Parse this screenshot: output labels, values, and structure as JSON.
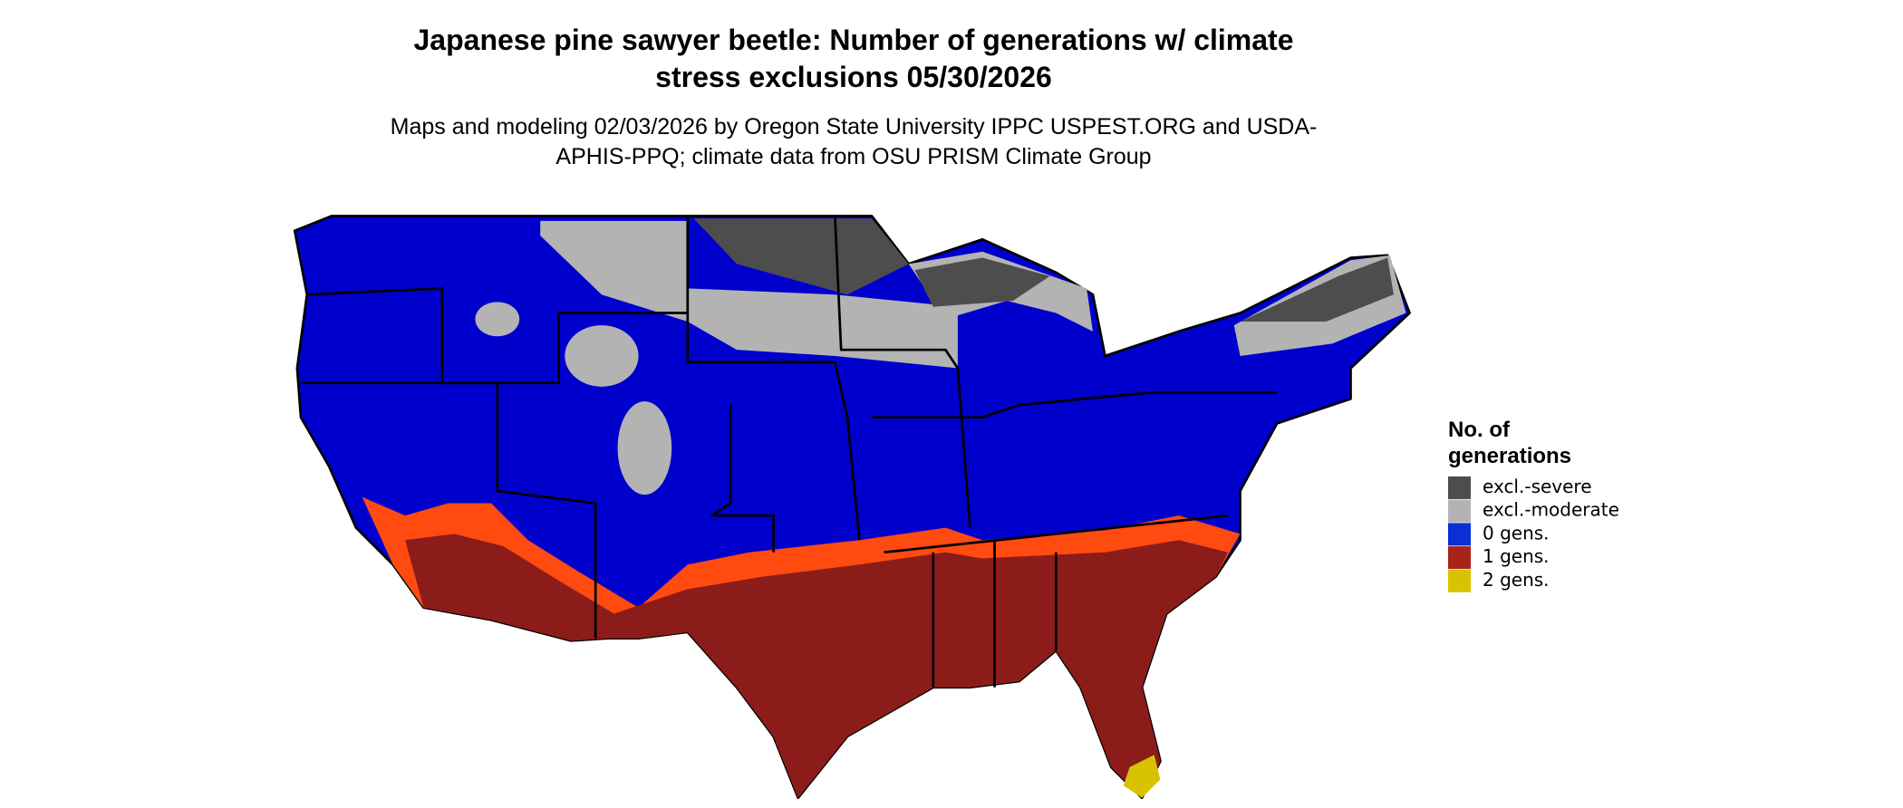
{
  "title": "Japanese pine sawyer beetle: Number of generations w/ climate stress exclusions 05/30/2026",
  "subtitle": "Maps and modeling 02/03/2026 by Oregon State University IPPC USPEST.ORG and USDA-APHIS-PPQ; climate data from OSU PRISM Climate Group",
  "legend": {
    "title": "No. of generations",
    "items": [
      {
        "label": "excl.-severe",
        "color": "#4d4d4d"
      },
      {
        "label": "excl.-moderate",
        "color": "#b3b3b3"
      },
      {
        "label": "0 gens.",
        "color": "#0a2fd6"
      },
      {
        "label": "1 gens.",
        "color": "#a8241a"
      },
      {
        "label": "2 gens.",
        "color": "#d9c200"
      }
    ]
  }
}
